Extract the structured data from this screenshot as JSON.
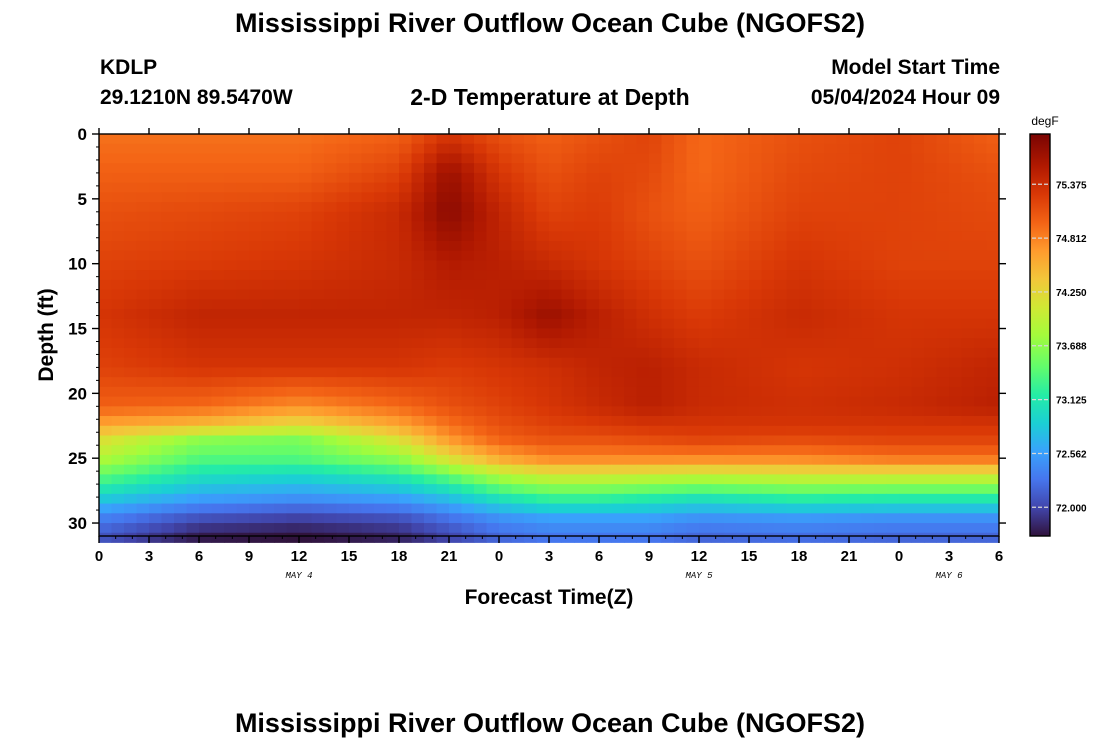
{
  "header": {
    "title": "Mississippi River Outflow Ocean Cube (NGOFS2)",
    "station": "KDLP",
    "coordinates": "29.1210N  89.5470W",
    "subtitle": "2-D Temperature at Depth",
    "model_start_label": "Model Start Time",
    "model_start_value": "05/04/2024 Hour 09"
  },
  "footer": {
    "title": "Mississippi River Outflow Ocean Cube (NGOFS2)"
  },
  "chart_data": {
    "type": "heatmap",
    "title": "2-D Temperature at Depth",
    "xlabel": "Forecast Time(Z)",
    "ylabel": "Depth (ft)",
    "x_range_hours": [
      0,
      54
    ],
    "y_range": [
      0,
      31
    ],
    "y_inverted": true,
    "x_ticks": [
      {
        "h": 0,
        "label": "0"
      },
      {
        "h": 3,
        "label": "3"
      },
      {
        "h": 6,
        "label": "6"
      },
      {
        "h": 9,
        "label": "9"
      },
      {
        "h": 12,
        "label": "12"
      },
      {
        "h": 15,
        "label": "15"
      },
      {
        "h": 18,
        "label": "18"
      },
      {
        "h": 21,
        "label": "21"
      },
      {
        "h": 24,
        "label": "0"
      },
      {
        "h": 27,
        "label": "3"
      },
      {
        "h": 30,
        "label": "6"
      },
      {
        "h": 33,
        "label": "9"
      },
      {
        "h": 36,
        "label": "12"
      },
      {
        "h": 39,
        "label": "15"
      },
      {
        "h": 42,
        "label": "18"
      },
      {
        "h": 45,
        "label": "21"
      },
      {
        "h": 48,
        "label": "0"
      },
      {
        "h": 51,
        "label": "3"
      },
      {
        "h": 54,
        "label": "6"
      }
    ],
    "date_labels": [
      {
        "h": 12,
        "label": "MAY 4"
      },
      {
        "h": 36,
        "label": "MAY 5"
      },
      {
        "h": 51,
        "label": "MAY 6"
      }
    ],
    "y_ticks": [
      0,
      5,
      10,
      15,
      20,
      25,
      30
    ],
    "colorbar": {
      "unit": "degF",
      "min": 71.7,
      "max": 75.9,
      "ticks": [
        75.375,
        74.812,
        74.25,
        73.688,
        73.125,
        72.562,
        72.0
      ],
      "tick_labels": [
        "75.375",
        "74.812",
        "74.250",
        "73.688",
        "73.125",
        "72.562",
        "72.000"
      ],
      "stops": [
        [
          0.0,
          "#30123b"
        ],
        [
          0.07,
          "#4145ab"
        ],
        [
          0.14,
          "#4675ed"
        ],
        [
          0.21,
          "#39a2fc"
        ],
        [
          0.28,
          "#1bcfd4"
        ],
        [
          0.35,
          "#24eca6"
        ],
        [
          0.42,
          "#61fc6c"
        ],
        [
          0.5,
          "#a4fc3b"
        ],
        [
          0.57,
          "#d1e834"
        ],
        [
          0.64,
          "#f3c63a"
        ],
        [
          0.71,
          "#fe9b2d"
        ],
        [
          0.78,
          "#f36315"
        ],
        [
          0.85,
          "#d93806"
        ],
        [
          0.92,
          "#b11901"
        ],
        [
          1.0,
          "#7a0402"
        ]
      ]
    },
    "depth_profile_ft": [
      0,
      3,
      6,
      10,
      14,
      18,
      21,
      22.5,
      23.5,
      25,
      26.5,
      28,
      29.5,
      31
    ],
    "time_samples_h": [
      0,
      6,
      12,
      18,
      21,
      24,
      27,
      30,
      33,
      36,
      42,
      48,
      54
    ],
    "temperature_degF": [
      [
        74.9,
        74.9,
        74.9,
        75.0,
        75.3,
        75.1,
        75.0,
        75.1,
        75.2,
        74.95,
        75.1,
        75.2,
        75.0
      ],
      [
        75.0,
        75.0,
        75.0,
        75.2,
        75.7,
        75.3,
        75.1,
        75.2,
        75.15,
        74.95,
        75.15,
        75.2,
        75.1
      ],
      [
        75.1,
        75.15,
        75.2,
        75.4,
        75.8,
        75.45,
        75.2,
        75.25,
        75.1,
        75.0,
        75.2,
        75.2,
        75.15
      ],
      [
        75.2,
        75.25,
        75.3,
        75.4,
        75.55,
        75.5,
        75.4,
        75.3,
        75.2,
        75.1,
        75.3,
        75.2,
        75.2
      ],
      [
        75.3,
        75.45,
        75.45,
        75.45,
        75.45,
        75.5,
        75.7,
        75.5,
        75.35,
        75.25,
        75.4,
        75.3,
        75.3
      ],
      [
        75.2,
        75.3,
        75.3,
        75.3,
        75.25,
        75.3,
        75.35,
        75.45,
        75.5,
        75.4,
        75.3,
        75.35,
        75.45
      ],
      [
        75.0,
        74.95,
        74.75,
        74.95,
        75.1,
        75.2,
        75.3,
        75.4,
        75.5,
        75.4,
        75.35,
        75.4,
        75.5
      ],
      [
        74.6,
        74.45,
        74.2,
        74.6,
        74.9,
        75.1,
        75.2,
        75.25,
        75.3,
        75.3,
        75.3,
        75.3,
        75.3
      ],
      [
        74.2,
        73.7,
        73.6,
        74.2,
        74.7,
        75.0,
        75.1,
        75.1,
        75.15,
        75.2,
        75.15,
        75.2,
        75.2
      ],
      [
        73.9,
        73.4,
        73.4,
        73.7,
        74.2,
        74.6,
        74.8,
        74.8,
        74.8,
        74.8,
        74.8,
        74.9,
        74.9
      ],
      [
        73.4,
        73.0,
        72.9,
        73.1,
        73.4,
        73.8,
        74.0,
        74.0,
        73.95,
        73.9,
        74.0,
        74.0,
        74.0
      ],
      [
        72.9,
        72.6,
        72.5,
        72.6,
        72.8,
        73.1,
        73.3,
        73.3,
        73.2,
        73.1,
        73.25,
        73.2,
        73.2
      ],
      [
        72.4,
        72.1,
        72.0,
        72.1,
        72.3,
        72.5,
        72.6,
        72.6,
        72.6,
        72.5,
        72.55,
        72.5,
        72.5
      ],
      [
        72.1,
        71.75,
        71.7,
        71.8,
        72.0,
        72.2,
        72.3,
        72.3,
        72.3,
        72.2,
        72.25,
        72.2,
        72.2
      ]
    ]
  }
}
